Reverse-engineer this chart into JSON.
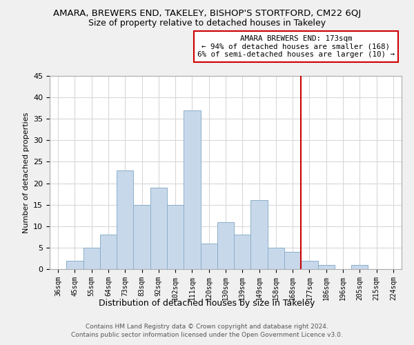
{
  "title": "AMARA, BREWERS END, TAKELEY, BISHOP'S STORTFORD, CM22 6QJ",
  "subtitle": "Size of property relative to detached houses in Takeley",
  "xlabel": "Distribution of detached houses by size in Takeley",
  "ylabel": "Number of detached properties",
  "bar_labels": [
    "36sqm",
    "45sqm",
    "55sqm",
    "64sqm",
    "73sqm",
    "83sqm",
    "92sqm",
    "102sqm",
    "111sqm",
    "120sqm",
    "130sqm",
    "139sqm",
    "149sqm",
    "158sqm",
    "168sqm",
    "177sqm",
    "186sqm",
    "196sqm",
    "205sqm",
    "215sqm",
    "224sqm"
  ],
  "bar_heights": [
    0,
    2,
    5,
    8,
    23,
    15,
    19,
    15,
    37,
    6,
    11,
    8,
    16,
    5,
    4,
    2,
    1,
    0,
    1,
    0,
    0
  ],
  "bar_color": "#c8d8eb",
  "bar_edge_color": "#8aafc8",
  "vline_x": 14.5,
  "vline_color": "#cc0000",
  "annotation_title": "AMARA BREWERS END: 173sqm",
  "annotation_line1": "← 94% of detached houses are smaller (168)",
  "annotation_line2": "6% of semi-detached houses are larger (10) →",
  "ylim": [
    0,
    45
  ],
  "yticks": [
    0,
    5,
    10,
    15,
    20,
    25,
    30,
    35,
    40,
    45
  ],
  "footer1": "Contains HM Land Registry data © Crown copyright and database right 2024.",
  "footer2": "Contains public sector information licensed under the Open Government Licence v3.0.",
  "bg_color": "#f0f0f0",
  "plot_bg_color": "#ffffff",
  "grid_color": "#d8d8d8"
}
